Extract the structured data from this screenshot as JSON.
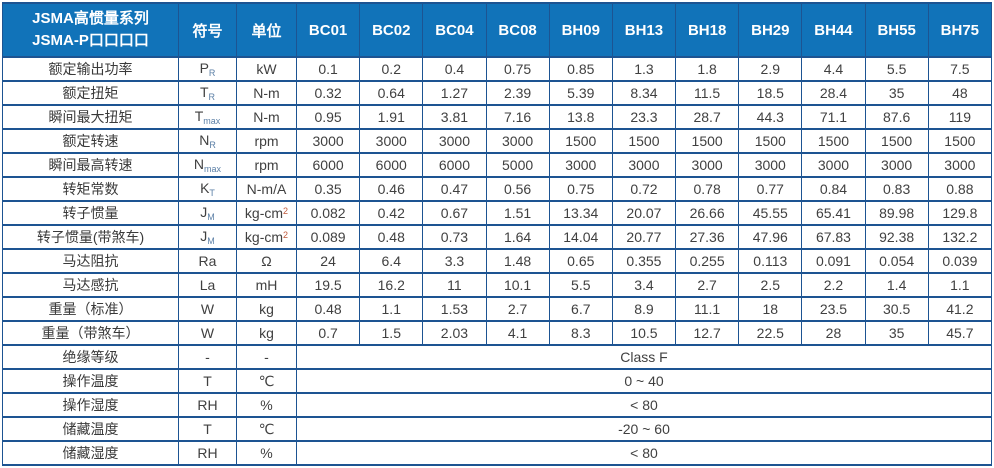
{
  "table": {
    "title_line1": "JSMA高惯量系列",
    "title_line2": "JSMA-P口口口口",
    "header": {
      "symbol": "符号",
      "unit": "单位",
      "models": [
        "BC01",
        "BC02",
        "BC04",
        "BC08",
        "BH09",
        "BH13",
        "BH18",
        "BH29",
        "BH44",
        "BH55",
        "BH75"
      ]
    },
    "rows": [
      {
        "label": "额定输出功率",
        "sym": "P",
        "sym_sub": "R",
        "unit": "kW",
        "values": [
          "0.1",
          "0.2",
          "0.4",
          "0.75",
          "0.85",
          "1.3",
          "1.8",
          "2.9",
          "4.4",
          "5.5",
          "7.5"
        ]
      },
      {
        "label": "额定扭矩",
        "sym": "T",
        "sym_sub": "R",
        "unit": "N-m",
        "values": [
          "0.32",
          "0.64",
          "1.27",
          "2.39",
          "5.39",
          "8.34",
          "11.5",
          "18.5",
          "28.4",
          "35",
          "48"
        ]
      },
      {
        "label": "瞬间最大扭矩",
        "sym": "T",
        "sym_sub": "max",
        "unit": "N-m",
        "values": [
          "0.95",
          "1.91",
          "3.81",
          "7.16",
          "13.8",
          "23.3",
          "28.7",
          "44.3",
          "71.1",
          "87.6",
          "119"
        ]
      },
      {
        "label": "额定转速",
        "sym": "N",
        "sym_sub": "R",
        "unit": "rpm",
        "values": [
          "3000",
          "3000",
          "3000",
          "3000",
          "1500",
          "1500",
          "1500",
          "1500",
          "1500",
          "1500",
          "1500"
        ]
      },
      {
        "label": "瞬间最高转速",
        "sym": "N",
        "sym_sub": "max",
        "unit": "rpm",
        "values": [
          "6000",
          "6000",
          "6000",
          "5000",
          "3000",
          "3000",
          "3000",
          "3000",
          "3000",
          "3000",
          "3000"
        ]
      },
      {
        "label": "转矩常数",
        "sym": "K",
        "sym_sub": "T",
        "unit": "N-m/A",
        "values": [
          "0.35",
          "0.46",
          "0.47",
          "0.56",
          "0.75",
          "0.72",
          "0.78",
          "0.77",
          "0.84",
          "0.83",
          "0.88"
        ]
      },
      {
        "label": "转子惯量",
        "sym": "J",
        "sym_sub": "M",
        "unit": "kg-cm",
        "unit_sup": "2",
        "values": [
          "0.082",
          "0.42",
          "0.67",
          "1.51",
          "13.34",
          "20.07",
          "26.66",
          "45.55",
          "65.41",
          "89.98",
          "129.8"
        ]
      },
      {
        "label": "转子惯量(带煞车)",
        "sym": "J",
        "sym_sub": "M",
        "unit": "kg-cm",
        "unit_sup": "2",
        "values": [
          "0.089",
          "0.48",
          "0.73",
          "1.64",
          "14.04",
          "20.77",
          "27.36",
          "47.96",
          "67.83",
          "92.38",
          "132.2"
        ]
      },
      {
        "label": "马达阻抗",
        "sym": "Ra",
        "sym_sub": "",
        "unit": "Ω",
        "values": [
          "24",
          "6.4",
          "3.3",
          "1.48",
          "0.65",
          "0.355",
          "0.255",
          "0.113",
          "0.091",
          "0.054",
          "0.039"
        ]
      },
      {
        "label": "马达感抗",
        "sym": "La",
        "sym_sub": "",
        "unit": "mH",
        "values": [
          "19.5",
          "16.2",
          "11",
          "10.1",
          "5.5",
          "3.4",
          "2.7",
          "2.5",
          "2.2",
          "1.4",
          "1.1"
        ]
      },
      {
        "label": "重量（标准）",
        "sym": "W",
        "sym_sub": "",
        "unit": "kg",
        "values": [
          "0.48",
          "1.1",
          "1.53",
          "2.7",
          "6.7",
          "8.9",
          "11.1",
          "18",
          "23.5",
          "30.5",
          "41.2"
        ]
      },
      {
        "label": "重量（带煞车）",
        "sym": "W",
        "sym_sub": "",
        "unit": "kg",
        "values": [
          "0.7",
          "1.5",
          "2.03",
          "4.1",
          "8.3",
          "10.5",
          "12.7",
          "22.5",
          "28",
          "35",
          "45.7"
        ]
      },
      {
        "label": "绝缘等级",
        "sym": "-",
        "sym_sub": "",
        "unit": "-",
        "span": "Class F"
      },
      {
        "label": "操作温度",
        "sym": "T",
        "sym_sub": "",
        "unit": "℃",
        "span": "0 ~ 40"
      },
      {
        "label": "操作湿度",
        "sym": "RH",
        "sym_sub": "",
        "unit": "%",
        "span": "< 80"
      },
      {
        "label": "储藏温度",
        "sym": "T",
        "sym_sub": "",
        "unit": "℃",
        "span": "-20 ~ 60"
      },
      {
        "label": "储藏湿度",
        "sym": "RH",
        "sym_sub": "",
        "unit": "%",
        "span": "< 80"
      }
    ]
  },
  "colors": {
    "header_bg": "#1173b9",
    "border": "#1d5492",
    "header_text": "#ffffff",
    "body_text": "#404040",
    "subscript": "#5b7fa6",
    "superscript": "#c05a3c"
  }
}
